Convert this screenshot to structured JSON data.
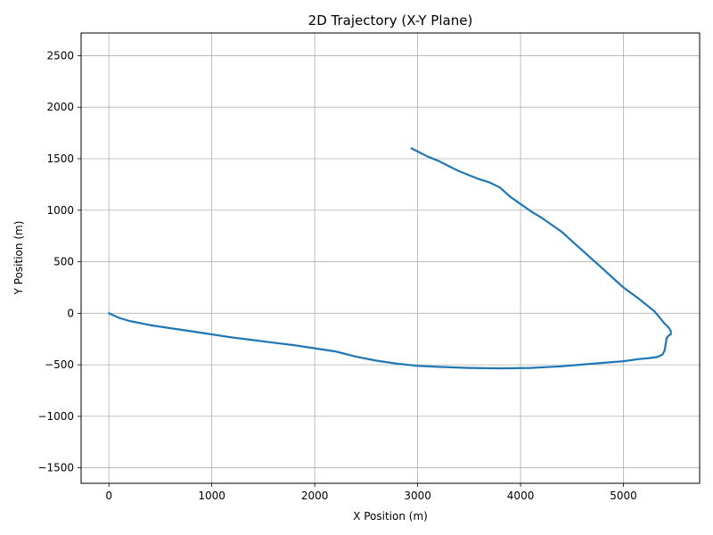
{
  "chart_data": {
    "type": "line",
    "title": "2D Trajectory (X-Y Plane)",
    "xlabel": "X Position (m)",
    "ylabel": "Y Position (m)",
    "xlim": [
      -270,
      5740
    ],
    "ylim": [
      -1650,
      2720
    ],
    "xticks": [
      0,
      1000,
      2000,
      3000,
      4000,
      5000
    ],
    "yticks": [
      -1500,
      -1000,
      -500,
      0,
      500,
      1000,
      1500,
      2000,
      2500
    ],
    "grid": true,
    "legend": "none",
    "line_color": "#1f77b4",
    "series": [
      {
        "x": [
          0,
          100,
          200,
          400,
          600,
          800,
          1000,
          1200,
          1400,
          1600,
          1800,
          2000,
          2200,
          2400,
          2600,
          2800,
          3000,
          3200,
          3500,
          3800,
          4100,
          4400,
          4700,
          5000,
          5150,
          5250,
          5330,
          5380,
          5400,
          5410,
          5420,
          5440,
          5460,
          5460,
          5440,
          5400,
          5350,
          5300,
          5250,
          5150,
          5000,
          4900,
          4800,
          4700,
          4600,
          4500,
          4400,
          4300,
          4200,
          4100,
          4000,
          3900,
          3800,
          3700,
          3600,
          3500,
          3400,
          3300,
          3200,
          3100,
          3000,
          2940
        ],
        "y": [
          0,
          -45,
          -75,
          -115,
          -145,
          -175,
          -205,
          -235,
          -260,
          -285,
          -310,
          -340,
          -370,
          -420,
          -460,
          -490,
          -510,
          -520,
          -530,
          -535,
          -530,
          -515,
          -490,
          -465,
          -445,
          -435,
          -425,
          -400,
          -360,
          -300,
          -240,
          -215,
          -205,
          -175,
          -140,
          -100,
          -40,
          20,
          60,
          140,
          250,
          340,
          430,
          520,
          610,
          700,
          790,
          860,
          930,
          990,
          1060,
          1130,
          1220,
          1270,
          1300,
          1340,
          1380,
          1430,
          1480,
          1520,
          1570,
          1600
        ]
      }
    ]
  }
}
